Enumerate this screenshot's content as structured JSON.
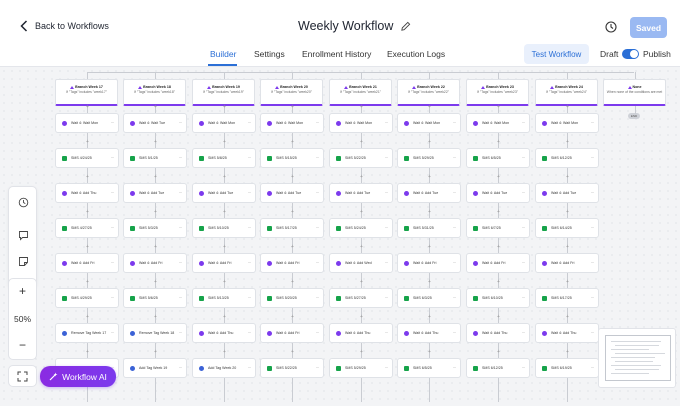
{
  "header": {
    "back_label": "Back to Workflows",
    "title": "Weekly Workflow",
    "saved_label": "Saved"
  },
  "tabs": [
    {
      "label": "Builder",
      "active": true
    },
    {
      "label": "Settings",
      "active": false
    },
    {
      "label": "Enrollment History",
      "active": false
    },
    {
      "label": "Execution Logs",
      "active": false
    }
  ],
  "actions": {
    "test_label": "Test Workflow",
    "draft_label": "Draft",
    "publish_label": "Publish",
    "publish_on": true
  },
  "branches": [
    {
      "title": "Branch Week 17",
      "subtitle": "If \"Tags\" includes \"week17\""
    },
    {
      "title": "Branch Week 18",
      "subtitle": "If \"Tags\" includes \"week18\""
    },
    {
      "title": "Branch Week 19",
      "subtitle": "If \"Tags\" includes \"week19\""
    },
    {
      "title": "Branch Week 20",
      "subtitle": "If \"Tags\" includes \"week20\""
    },
    {
      "title": "Branch Week 21",
      "subtitle": "If \"Tags\" includes \"week21\""
    },
    {
      "title": "Branch Week 22",
      "subtitle": "If \"Tags\" includes \"week22\""
    },
    {
      "title": "Branch Week 23",
      "subtitle": "If \"Tags\" includes \"week23\""
    },
    {
      "title": "Branch Week 24",
      "subtitle": "If \"Tags\" includes \"week24\""
    },
    {
      "title": "None",
      "subtitle": "When none of the conditions are met"
    }
  ],
  "end_label": "END",
  "rows": [
    [
      "Wait 4: Wait Mon",
      "Wait 4: Wait Tue",
      "Wait 4: Wait Mon",
      "Wait 4: Wait Mon",
      "Wait 4: Wait Mon",
      "Wait 4: Wait Mon",
      "Wait 4: Wait Mon",
      "Wait 4: Wait Mon"
    ],
    [
      "SMS 4/24/25",
      "SMS 5/1/25",
      "SMS 5/8/25",
      "SMS 5/15/25",
      "SMS 5/22/25",
      "SMS 5/29/25",
      "SMS 6/5/25",
      "SMS 6/12/25"
    ],
    [
      "Wait 4: Add Thu",
      "Wait 4: Add Tue",
      "Wait 4: Add Tue",
      "Wait 4: Add Tue",
      "Wait 4: Add Tue",
      "Wait 4: Add Tue",
      "Wait 4: Add Tue",
      "Wait 4: Add Tue"
    ],
    [
      "SMS 4/27/25",
      "SMS 5/3/25",
      "SMS 5/10/25",
      "SMS 5/17/25",
      "SMS 5/24/25",
      "SMS 5/31/25",
      "SMS 6/7/25",
      "SMS 6/14/25"
    ],
    [
      "Wait 4: Add Fri",
      "Wait 4: Add Fri",
      "Wait 4: Add Fri",
      "Wait 4: Add Fri",
      "Wait 4: Add Wed",
      "Wait 4: Add Fri",
      "Wait 4: Add Fri",
      "Wait 4: Add Fri"
    ],
    [
      "SMS 4/29/25",
      "SMS 5/6/25",
      "SMS 5/13/25",
      "SMS 5/20/25",
      "SMS 5/27/25",
      "SMS 6/3/25",
      "SMS 6/10/25",
      "SMS 6/17/25"
    ],
    [
      "Remove Tag Week 17",
      "Remove Tag Week 18",
      "Wait 4: Add Thu",
      "Wait 4: Add Fri",
      "Wait 4: Add Thu",
      "Wait 4: Add Thu",
      "Wait 4: Add Thu",
      "Wait 4: Add Thu"
    ],
    [
      "Add Tag Week 18",
      "Add Tag Week 19",
      "Add Tag Week 20",
      "SMS 5/22/25",
      "SMS 5/29/25",
      "SMS 6/5/25",
      "SMS 6/12/25",
      "SMS 6/19/25"
    ]
  ],
  "toolbar": {
    "zoom_in": "+",
    "zoom_label": "50%",
    "zoom_out": "−"
  },
  "ai_label": "Workflow AI",
  "colors": {
    "accent": "#2b6fd6",
    "wait": "#7c3aed",
    "sms": "#16a34a",
    "tag": "#3b62d6"
  }
}
